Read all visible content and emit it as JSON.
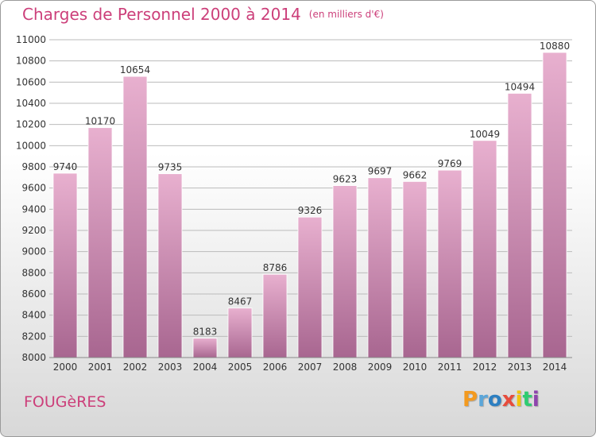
{
  "header": {
    "title": "Charges de Personnel 2000 à 2014",
    "subtitle": "(en milliers d'€)"
  },
  "footer": {
    "commune": "FOUGèRES",
    "logo_text": "Proxiti"
  },
  "colors": {
    "title": "#cc3f7a",
    "bar_light": "#e8b0cf",
    "bar_dark": "#a86690",
    "grid": "#bbbbbb"
  },
  "chart_data": {
    "type": "bar",
    "title": "Charges de Personnel 2000 à 2014",
    "subtitle": "(en milliers d'€)",
    "categories": [
      "2000",
      "2001",
      "2002",
      "2003",
      "2004",
      "2005",
      "2006",
      "2007",
      "2008",
      "2009",
      "2010",
      "2011",
      "2012",
      "2013",
      "2014"
    ],
    "values": [
      9740,
      10170,
      10654,
      9735,
      8183,
      8467,
      8786,
      9326,
      9623,
      9697,
      9662,
      9769,
      10049,
      10494,
      10880
    ],
    "ylim": [
      8000,
      11000
    ],
    "yticks": [
      8000,
      8200,
      8400,
      8600,
      8800,
      9000,
      9200,
      9400,
      9600,
      9800,
      10000,
      10200,
      10400,
      10600,
      10800,
      11000
    ],
    "grid": true,
    "xlabel": "",
    "ylabel": ""
  }
}
